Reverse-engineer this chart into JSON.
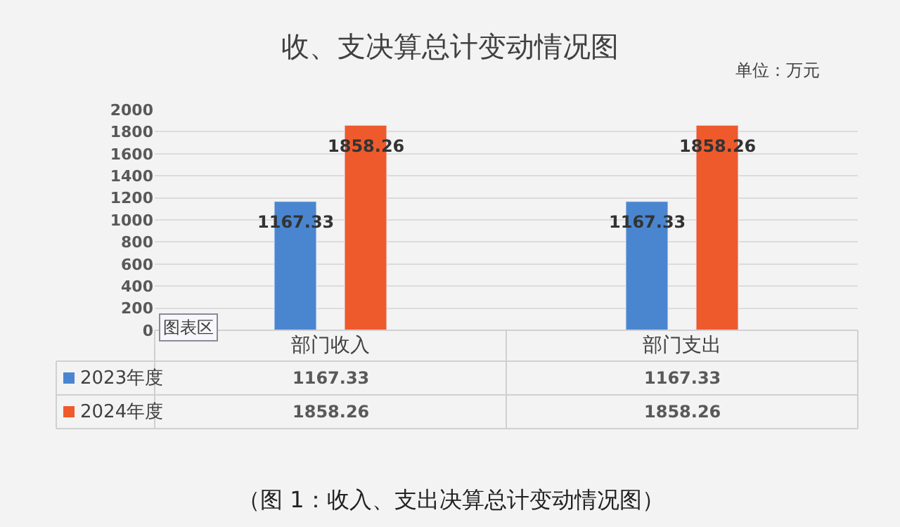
{
  "chart_data": {
    "type": "bar",
    "title": "收、支决算总计变动情况图",
    "categories": [
      "部门收入",
      "部门支出"
    ],
    "series": [
      {
        "name": "2023年度",
        "color": "#4a86d0",
        "values": [
          1167.33,
          1167.33
        ],
        "value_labels": [
          "1167.33",
          "1167.33"
        ]
      },
      {
        "name": "2024年度",
        "color": "#ee5a2c",
        "values": [
          1858.26,
          1858.26
        ],
        "value_labels": [
          "1858.26",
          "1858.26"
        ]
      }
    ],
    "ylim": [
      0,
      2000
    ],
    "yticks": [
      0,
      200,
      400,
      600,
      800,
      1000,
      1200,
      1400,
      1600,
      1800,
      2000
    ],
    "grid": "y",
    "legend": "bottom",
    "annotations": [
      "单位：万元",
      "图表区",
      "（图 1：收入、支出决算总计变动情况图）",
      "1167.33",
      "1167.33",
      "1858.26",
      "1858.26"
    ]
  }
}
